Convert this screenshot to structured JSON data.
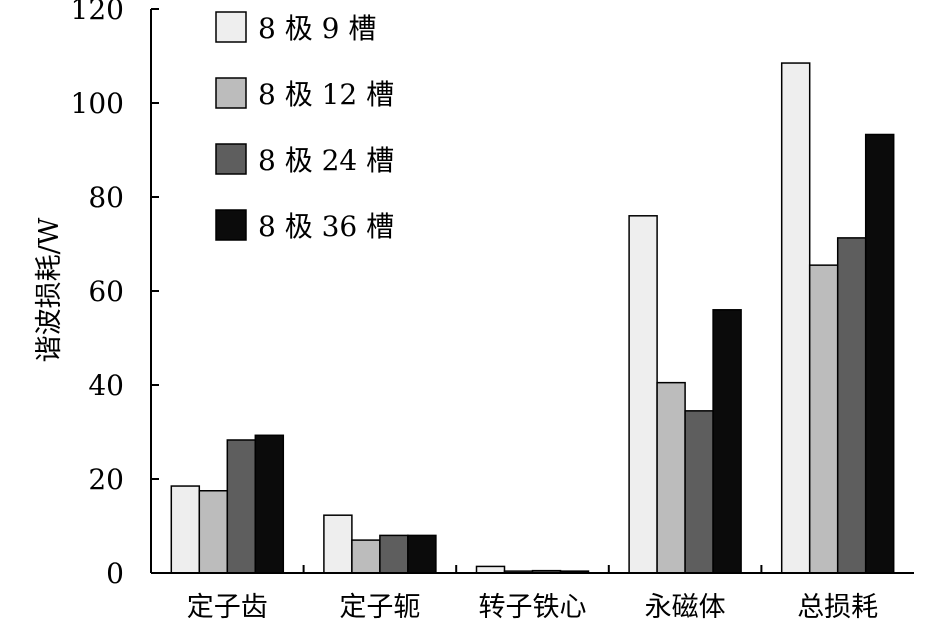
{
  "chart_data": {
    "type": "bar",
    "mode": "grouped",
    "title": "",
    "xlabel": "",
    "ylabel": "谐波损耗/W",
    "ylim": [
      0,
      120
    ],
    "yticks": [
      0,
      20,
      40,
      60,
      80,
      100,
      120
    ],
    "categories": [
      "定子齿",
      "定子轭",
      "转子铁心",
      "永磁体",
      "总损耗"
    ],
    "series": [
      {
        "name": "8 极 9 槽",
        "color": "#eeeeee",
        "values": [
          18.5,
          12.3,
          1.4,
          76,
          108.5
        ]
      },
      {
        "name": "8 极 12 槽",
        "color": "#bcbcbc",
        "values": [
          17.5,
          7.0,
          0.4,
          40.5,
          65.5
        ]
      },
      {
        "name": "8 极 24 槽",
        "color": "#5e5e5e",
        "values": [
          28.3,
          8.0,
          0.5,
          34.5,
          71.3
        ]
      },
      {
        "name": "8 极 36 槽",
        "color": "#0b0b0b",
        "values": [
          29.3,
          8.0,
          0.4,
          56.0,
          93.3
        ]
      }
    ],
    "legend_position": "top-left",
    "grid": false
  }
}
